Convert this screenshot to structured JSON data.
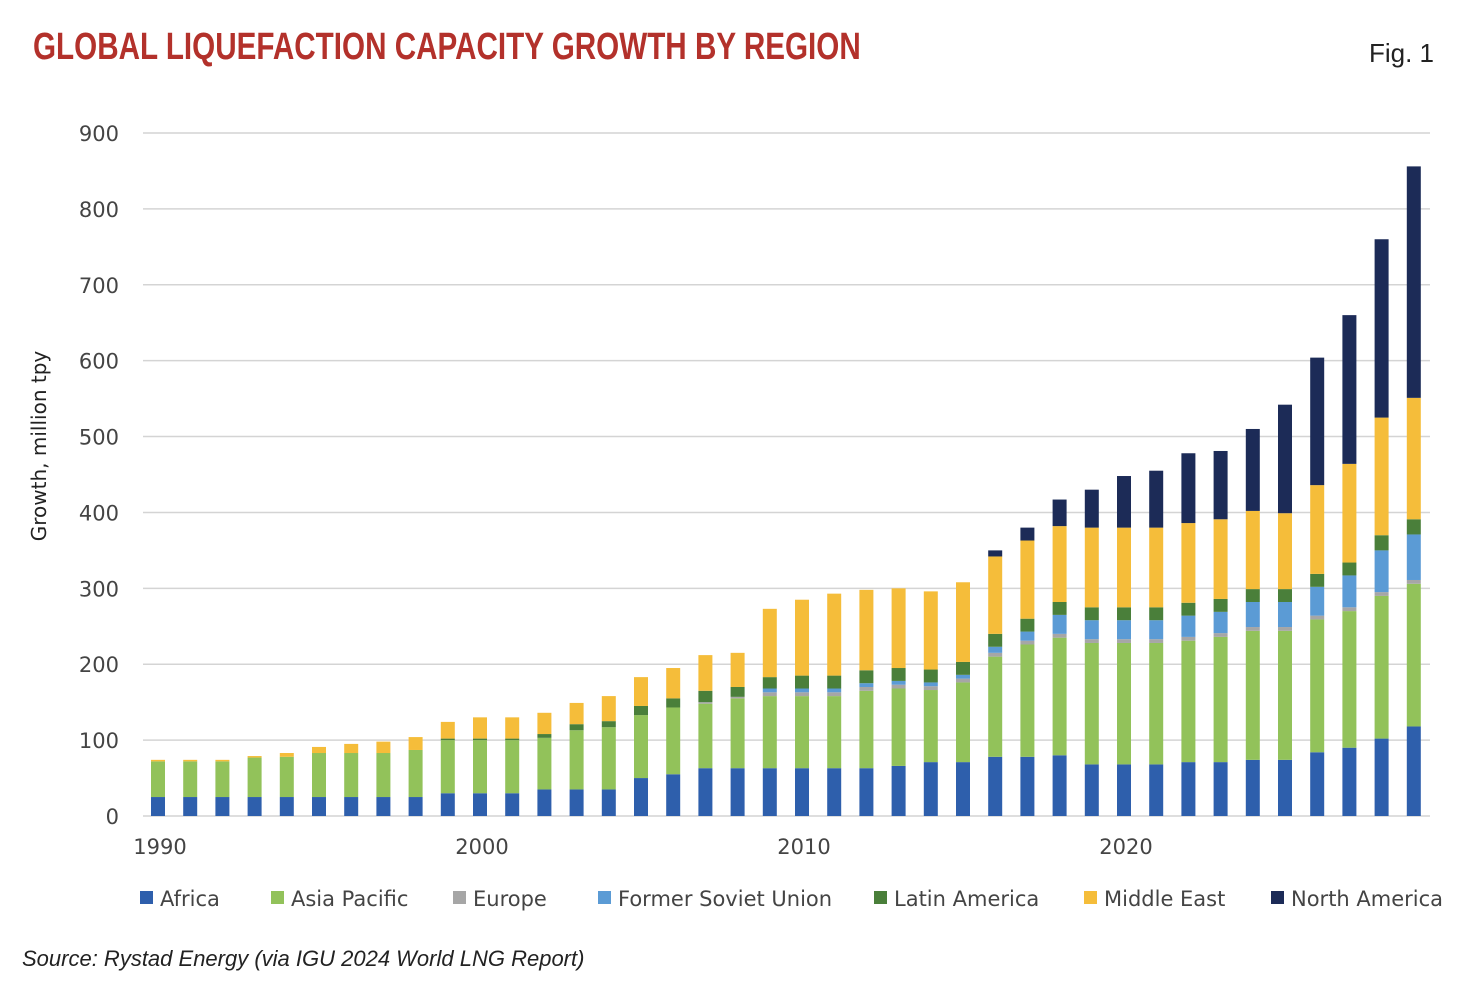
{
  "header": {
    "title": "GLOBAL LIQUEFACTION CAPACITY GROWTH BY REGION",
    "figure_label": "Fig. 1"
  },
  "source": "Source: Rystad Energy (via IGU 2024 World LNG Report)",
  "chart_data": {
    "type": "bar",
    "stacked": true,
    "title": "GLOBAL LIQUEFACTION CAPACITY GROWTH BY REGION",
    "xlabel": "",
    "ylabel": "Growth, million tpy",
    "ylim": [
      0,
      900
    ],
    "yticks": [
      0,
      100,
      200,
      300,
      400,
      500,
      600,
      700,
      800,
      900
    ],
    "xticks": [
      1990,
      2000,
      2010,
      2020
    ],
    "grid": true,
    "legend_position": "bottom",
    "categories": [
      1990,
      1991,
      1992,
      1993,
      1994,
      1995,
      1996,
      1997,
      1998,
      1999,
      2000,
      2001,
      2002,
      2003,
      2004,
      2005,
      2006,
      2007,
      2008,
      2009,
      2010,
      2011,
      2012,
      2013,
      2014,
      2015,
      2016,
      2017,
      2018,
      2019,
      2020,
      2021,
      2022,
      2023,
      2024,
      2025,
      2026,
      2027,
      2028,
      2029
    ],
    "series": [
      {
        "name": "Africa",
        "color": "#2e5fac",
        "values": [
          25,
          25,
          25,
          25,
          25,
          25,
          25,
          25,
          25,
          30,
          30,
          30,
          35,
          35,
          35,
          50,
          55,
          63,
          63,
          63,
          63,
          63,
          63,
          66,
          71,
          71,
          78,
          78,
          80,
          68,
          68,
          68,
          71,
          71,
          74,
          74,
          84,
          90,
          102,
          118
        ]
      },
      {
        "name": "Asia Pacific",
        "color": "#92c25a",
        "values": [
          47,
          47,
          47,
          52,
          53,
          58,
          58,
          58,
          62,
          70,
          70,
          70,
          68,
          78,
          82,
          83,
          88,
          85,
          92,
          95,
          95,
          95,
          102,
          102,
          95,
          105,
          132,
          148,
          155,
          160,
          160,
          160,
          160,
          165,
          170,
          170,
          175,
          180,
          188,
          188
        ]
      },
      {
        "name": "Europe",
        "color": "#a6a6a6",
        "values": [
          0,
          0,
          0,
          0,
          0,
          0,
          0,
          0,
          0,
          0,
          0,
          0,
          0,
          0,
          0,
          0,
          0,
          2,
          2,
          5,
          5,
          5,
          5,
          5,
          5,
          5,
          5,
          5,
          5,
          5,
          5,
          5,
          5,
          5,
          5,
          5,
          5,
          5,
          5,
          5
        ]
      },
      {
        "name": "Former Soviet Union",
        "color": "#5b9bd5",
        "values": [
          0,
          0,
          0,
          0,
          0,
          0,
          0,
          0,
          0,
          0,
          0,
          0,
          0,
          0,
          0,
          0,
          0,
          0,
          0,
          5,
          5,
          5,
          5,
          5,
          5,
          5,
          8,
          12,
          25,
          25,
          25,
          25,
          28,
          28,
          33,
          33,
          38,
          42,
          55,
          60
        ]
      },
      {
        "name": "Latin America",
        "color": "#4a7f3a",
        "values": [
          0,
          0,
          0,
          0,
          0,
          0,
          0,
          0,
          0,
          2,
          2,
          2,
          5,
          8,
          8,
          12,
          12,
          15,
          13,
          15,
          17,
          17,
          17,
          17,
          17,
          17,
          17,
          17,
          17,
          17,
          17,
          17,
          17,
          17,
          17,
          17,
          17,
          17,
          20,
          20
        ]
      },
      {
        "name": "Middle East",
        "color": "#f5bd3a",
        "values": [
          2,
          2,
          2,
          2,
          5,
          8,
          12,
          15,
          17,
          22,
          28,
          28,
          28,
          28,
          33,
          38,
          40,
          47,
          45,
          90,
          100,
          108,
          106,
          105,
          103,
          105,
          102,
          103,
          100,
          105,
          105,
          105,
          105,
          105,
          103,
          100,
          117,
          130,
          155,
          160
        ]
      },
      {
        "name": "North America",
        "color": "#1c2b57",
        "values": [
          0,
          0,
          0,
          0,
          0,
          0,
          0,
          0,
          0,
          0,
          0,
          0,
          0,
          0,
          0,
          0,
          0,
          0,
          0,
          0,
          0,
          0,
          0,
          0,
          0,
          0,
          8,
          17,
          35,
          50,
          68,
          75,
          92,
          90,
          108,
          143,
          168,
          196,
          235,
          305
        ]
      }
    ]
  }
}
